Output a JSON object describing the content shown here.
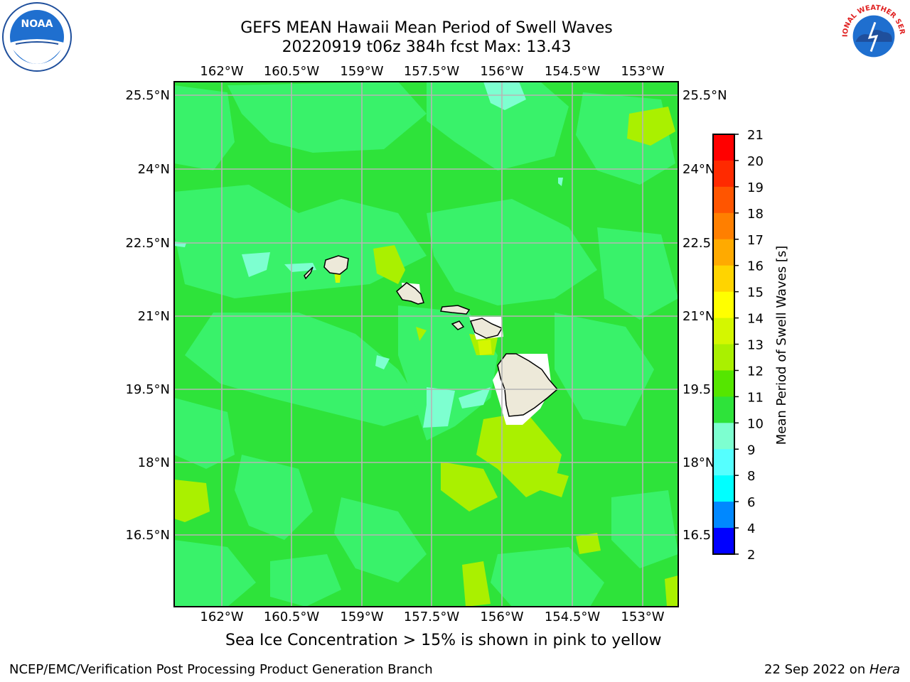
{
  "header": {
    "title_line1": "GEFS MEAN Hawaii Mean Period of Swell Waves",
    "title_line2": "20220919 t06z 384h fcst   Max: 13.43"
  },
  "logos": {
    "left": "noaa-logo",
    "right": "nws-logo",
    "left_text": "NOAA",
    "right_text": "NATIONAL WEATHER SERVICE"
  },
  "map": {
    "lon_labels": [
      "162°W",
      "160.5°W",
      "159°W",
      "157.5°W",
      "156°W",
      "154.5°W",
      "153°W"
    ],
    "lat_labels": [
      "25.5°N",
      "24°N",
      "22.5°N",
      "21°N",
      "19.5°N",
      "18°N",
      "16.5°N"
    ],
    "lat_labels_right": [
      "25.5°N",
      "24°N",
      "22.5",
      "21°N",
      "19.5",
      "18°N",
      "16.5"
    ],
    "land_color": "#ede9d9",
    "grid_color": "#b5b5b5"
  },
  "colorbar": {
    "label": "Mean Period of Swell Waves [s]",
    "ticks": [
      "21",
      "20",
      "19",
      "18",
      "17",
      "16",
      "15",
      "14",
      "13",
      "12",
      "11",
      "10",
      "9",
      "8",
      "6",
      "4",
      "2"
    ],
    "colors": [
      "#ff0000",
      "#ff2a00",
      "#ff5500",
      "#ff7f00",
      "#ffaa00",
      "#ffd400",
      "#ffff00",
      "#d4f700",
      "#aaf000",
      "#55e600",
      "#2ee33a",
      "#7dffd0",
      "#55ffff",
      "#00ffff",
      "#0088ff",
      "#0000ff"
    ]
  },
  "footer": {
    "caption": "Sea Ice Concentration > 15% is shown in pink to yellow",
    "credit": "NCEP/EMC/Verification Post Processing Product Generation Branch",
    "date": "22 Sep 2022 on ",
    "host": "Hera"
  }
}
